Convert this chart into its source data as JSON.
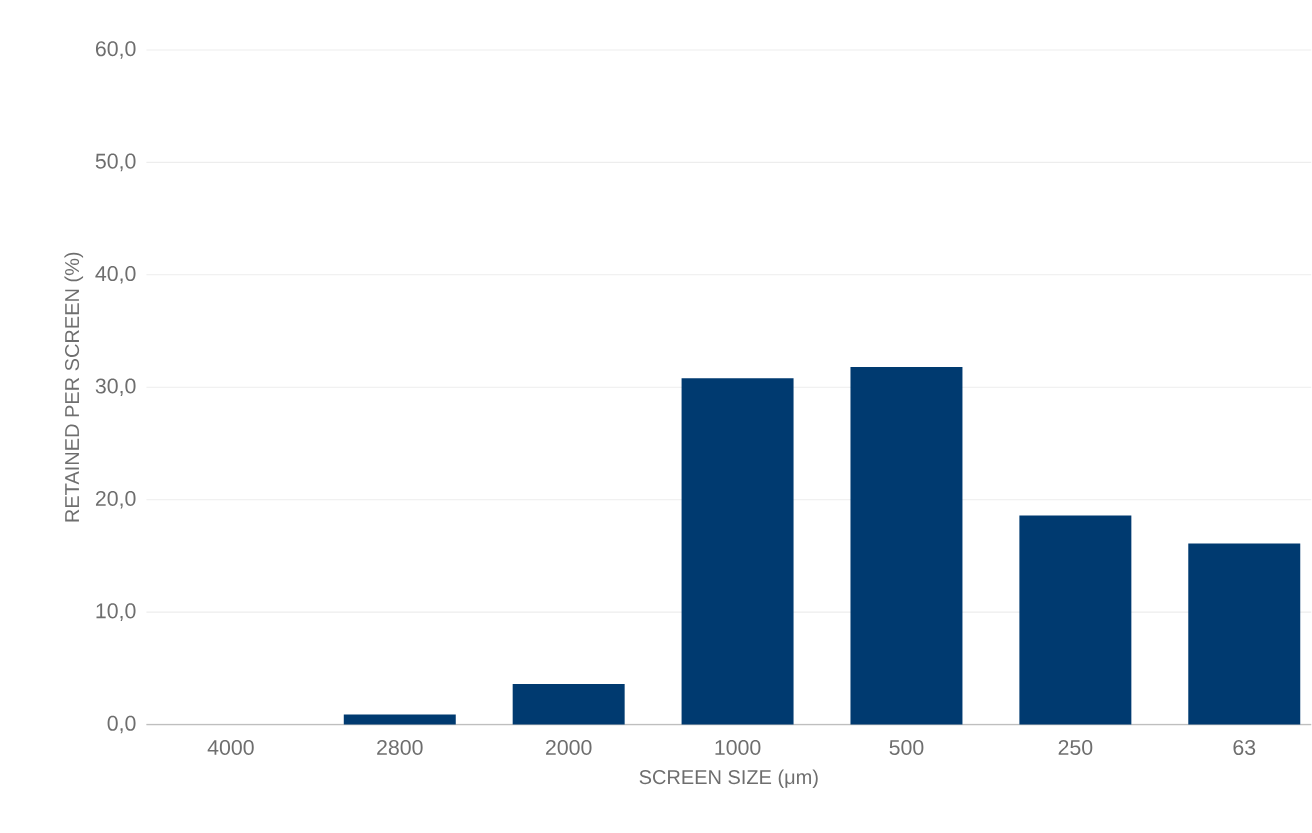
{
  "chart_data": {
    "type": "bar",
    "xlabel": "SCREEN SIZE (μm)",
    "ylabel": "RETAINED PER SCREEN (%)",
    "categories": [
      "4000",
      "2800",
      "2000",
      "1000",
      "500",
      "250",
      "63"
    ],
    "values": [
      0,
      0.9,
      3.6,
      30.8,
      31.8,
      18.6,
      16.1
    ],
    "color": "#003a70",
    "ylim": [
      0,
      60
    ],
    "yticks": [
      {
        "value": 0,
        "label": "0,0"
      },
      {
        "value": 10,
        "label": "10,0"
      },
      {
        "value": 20,
        "label": "20,0"
      },
      {
        "value": 30,
        "label": "30,0"
      },
      {
        "value": 40,
        "label": "40,0"
      },
      {
        "value": 50,
        "label": "50,0"
      },
      {
        "value": 60,
        "label": "60,0"
      }
    ],
    "grid": "y"
  }
}
